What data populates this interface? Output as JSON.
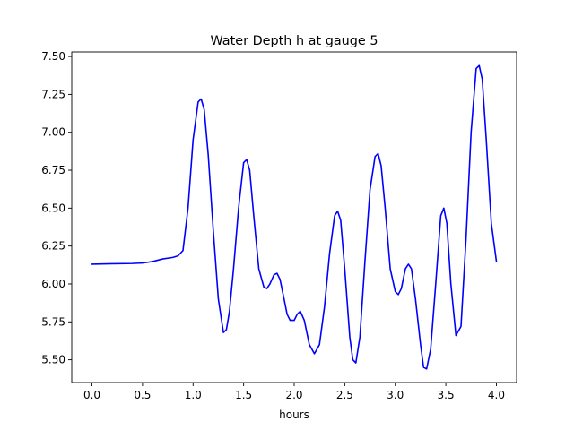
{
  "chart_data": {
    "type": "line",
    "title": "Water Depth h at gauge 5",
    "xlabel": "hours",
    "ylabel": "",
    "xlim": [
      -0.2,
      4.2
    ],
    "ylim": [
      5.35,
      7.53
    ],
    "xticks": [
      0.0,
      0.5,
      1.0,
      1.5,
      2.0,
      2.5,
      3.0,
      3.5,
      4.0
    ],
    "xtick_labels": [
      "0.0",
      "0.5",
      "1.0",
      "1.5",
      "2.0",
      "2.5",
      "3.0",
      "3.5",
      "4.0"
    ],
    "yticks": [
      5.5,
      5.75,
      6.0,
      6.25,
      6.5,
      6.75,
      7.0,
      7.25,
      7.5
    ],
    "ytick_labels": [
      "5.50",
      "5.75",
      "6.00",
      "6.25",
      "6.50",
      "6.75",
      "7.00",
      "7.25",
      "7.50"
    ],
    "grid": false,
    "series": [
      {
        "color": "#0000ff",
        "x": [
          0.0,
          0.2,
          0.4,
          0.5,
          0.6,
          0.7,
          0.8,
          0.85,
          0.9,
          0.95,
          1.0,
          1.05,
          1.08,
          1.11,
          1.15,
          1.2,
          1.25,
          1.3,
          1.33,
          1.36,
          1.4,
          1.45,
          1.5,
          1.53,
          1.56,
          1.6,
          1.65,
          1.7,
          1.73,
          1.76,
          1.8,
          1.83,
          1.86,
          1.9,
          1.93,
          1.96,
          2.0,
          2.03,
          2.06,
          2.1,
          2.15,
          2.2,
          2.25,
          2.3,
          2.35,
          2.4,
          2.43,
          2.46,
          2.5,
          2.55,
          2.58,
          2.61,
          2.65,
          2.7,
          2.75,
          2.8,
          2.83,
          2.86,
          2.9,
          2.95,
          3.0,
          3.03,
          3.06,
          3.1,
          3.13,
          3.16,
          3.2,
          3.25,
          3.28,
          3.31,
          3.35,
          3.4,
          3.45,
          3.48,
          3.51,
          3.55,
          3.6,
          3.65,
          3.7,
          3.75,
          3.8,
          3.83,
          3.86,
          3.9,
          3.95,
          4.0
        ],
        "y": [
          6.13,
          6.133,
          6.135,
          6.138,
          6.148,
          6.165,
          6.175,
          6.185,
          6.22,
          6.5,
          6.95,
          7.2,
          7.22,
          7.15,
          6.85,
          6.35,
          5.9,
          5.68,
          5.7,
          5.82,
          6.1,
          6.5,
          6.8,
          6.82,
          6.75,
          6.45,
          6.1,
          5.98,
          5.97,
          6.0,
          6.06,
          6.07,
          6.03,
          5.9,
          5.8,
          5.76,
          5.76,
          5.8,
          5.82,
          5.76,
          5.6,
          5.54,
          5.6,
          5.85,
          6.2,
          6.45,
          6.48,
          6.42,
          6.1,
          5.65,
          5.5,
          5.48,
          5.65,
          6.15,
          6.62,
          6.84,
          6.86,
          6.78,
          6.5,
          6.1,
          5.95,
          5.93,
          5.97,
          6.1,
          6.13,
          6.1,
          5.9,
          5.6,
          5.45,
          5.44,
          5.57,
          6.0,
          6.45,
          6.5,
          6.4,
          6.0,
          5.66,
          5.72,
          6.3,
          7.0,
          7.42,
          7.44,
          7.35,
          6.95,
          6.4,
          6.15
        ]
      }
    ]
  }
}
